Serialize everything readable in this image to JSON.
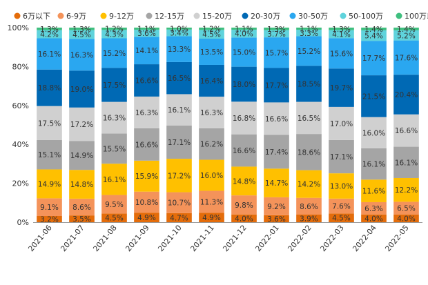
{
  "chart_data": {
    "type": "bar",
    "stacked": true,
    "normalized": true,
    "title": "",
    "xlabel": "",
    "ylabel": "",
    "ylim": [
      0,
      100
    ],
    "y_ticks": [
      "0%",
      "20%",
      "40%",
      "60%",
      "80%",
      "100%"
    ],
    "categories": [
      "2021-06",
      "2021-07",
      "2021-08",
      "2021-09",
      "2021-10",
      "2021-11",
      "2021-12",
      "2022-01",
      "2022-02",
      "2022-03",
      "2022-04",
      "2022-05"
    ],
    "legend_position": "top",
    "series": [
      {
        "name": "6万以下",
        "color": "#e46c0a",
        "values": [
          3.2,
          3.5,
          4.5,
          4.9,
          4.7,
          4.9,
          4.0,
          3.6,
          3.9,
          4.5,
          4.0,
          4.0
        ]
      },
      {
        "name": "6-9万",
        "color": "#f4935a",
        "values": [
          9.1,
          8.6,
          9.5,
          10.8,
          10.7,
          11.3,
          9.8,
          9.2,
          8.6,
          7.6,
          6.3,
          6.5
        ]
      },
      {
        "name": "9-12万",
        "color": "#ffc000",
        "values": [
          14.9,
          14.8,
          16.1,
          15.9,
          17.2,
          16.0,
          14.8,
          14.7,
          14.2,
          13.0,
          11.6,
          12.2
        ]
      },
      {
        "name": "12-15万",
        "color": "#a5a5a5",
        "values": [
          15.1,
          14.9,
          15.5,
          16.6,
          17.1,
          16.2,
          16.6,
          17.4,
          18.6,
          17.1,
          16.1,
          16.1
        ]
      },
      {
        "name": "15-20万",
        "color": "#d0d0d0",
        "values": [
          17.5,
          17.2,
          16.3,
          16.3,
          16.1,
          16.3,
          16.8,
          16.6,
          16.5,
          17.0,
          16.0,
          16.6
        ]
      },
      {
        "name": "20-30万",
        "color": "#0069b4",
        "values": [
          18.8,
          19.0,
          17.5,
          16.6,
          16.5,
          16.4,
          18.0,
          17.7,
          18.5,
          19.7,
          21.5,
          20.4
        ]
      },
      {
        "name": "30-50万",
        "color": "#2aa7f0",
        "values": [
          16.1,
          16.3,
          15.2,
          14.1,
          13.3,
          13.5,
          15.0,
          15.7,
          15.2,
          15.6,
          17.7,
          17.6
        ]
      },
      {
        "name": "50-100万",
        "color": "#5fd3dc",
        "values": [
          4.2,
          4.5,
          4.3,
          3.6,
          3.4,
          4.5,
          4.0,
          3.7,
          3.3,
          4.1,
          5.4,
          5.2
        ]
      },
      {
        "name": "100万以上",
        "color": "#3fbf7f",
        "values": [
          1.3,
          1.3,
          1.2,
          1.1,
          1.0,
          1.2,
          1.1,
          1.3,
          1.1,
          1.3,
          1.4,
          1.4
        ]
      }
    ]
  }
}
